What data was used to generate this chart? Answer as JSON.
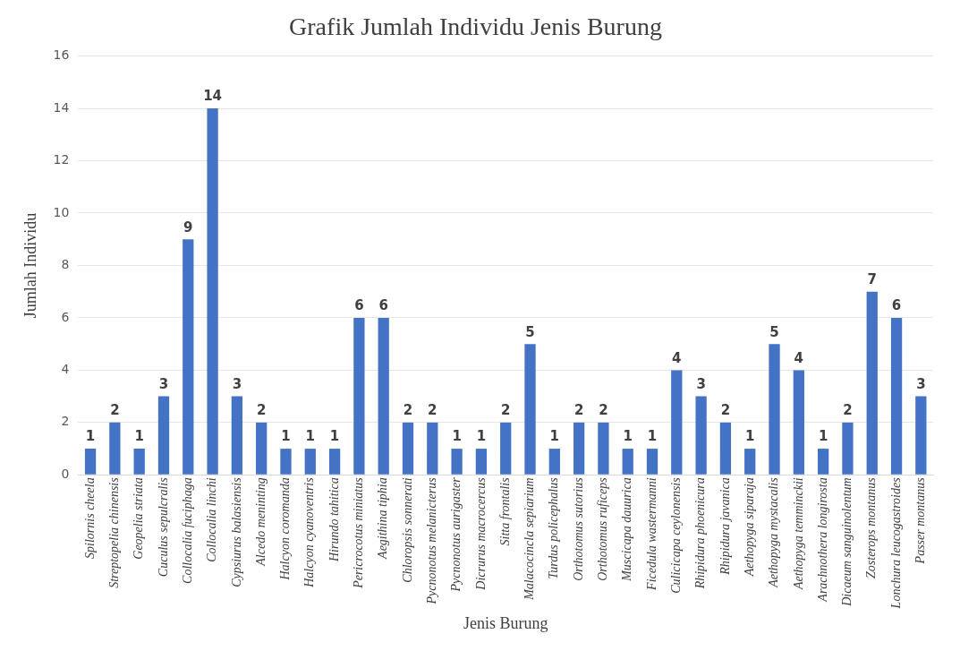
{
  "chart_data": {
    "type": "bar",
    "title": "Grafik Jumlah Individu Jenis Burung",
    "xlabel": "Jenis Burung",
    "ylabel": "Jumlah Individu",
    "categories": [
      "Spilornis cheela",
      "Streptopelia chinensis",
      "Geopelia striata",
      "Cuculus sepulcralis",
      "Collocalia fuciphaga",
      "Collocalia linchi",
      "Cypsiurus balasiensis",
      "Alcedo meninting",
      "Halcyon coromanda",
      "Halcyon cyanoventris",
      "Hirundo tahitica",
      "Pericrocotus miniatus",
      "Aegithina tiphia",
      "Chloropsis sonnerati",
      "Pycnonotus melanicterus",
      "Pycnonotus aurigaster",
      "Dicrurus macrocercus",
      "Sitta frontalis",
      "Malacocincla sepiarium",
      "Turdus policephalus",
      "Orthotomus sutorius",
      "Orthotomus ruficeps",
      "Muscicapa dauurica",
      "Ficedula wastermanni",
      "Culicicapa ceylonensis",
      "Rhipidura phoenicura",
      "Rhipidura javanica",
      "Aethopyga siparaja",
      "Aethopyga mystacalis",
      "Aethopyga temminckii",
      "Arachnothera longirosta",
      "Dicaeum sanguinolentum",
      "Zosterops montanus",
      "Lonchura leucogastroides",
      "Passer montanus"
    ],
    "values": [
      1,
      2,
      1,
      3,
      9,
      14,
      3,
      2,
      1,
      1,
      1,
      6,
      6,
      2,
      2,
      1,
      1,
      2,
      5,
      1,
      2,
      2,
      1,
      1,
      4,
      3,
      2,
      1,
      5,
      4,
      1,
      2,
      7,
      6,
      3
    ],
    "color": "#4472c4",
    "ylim": [
      0,
      16
    ],
    "yticks": [
      0,
      2,
      4,
      6,
      8,
      10,
      12,
      14,
      16
    ],
    "grid": "y",
    "data_labels": true,
    "legend": false
  }
}
